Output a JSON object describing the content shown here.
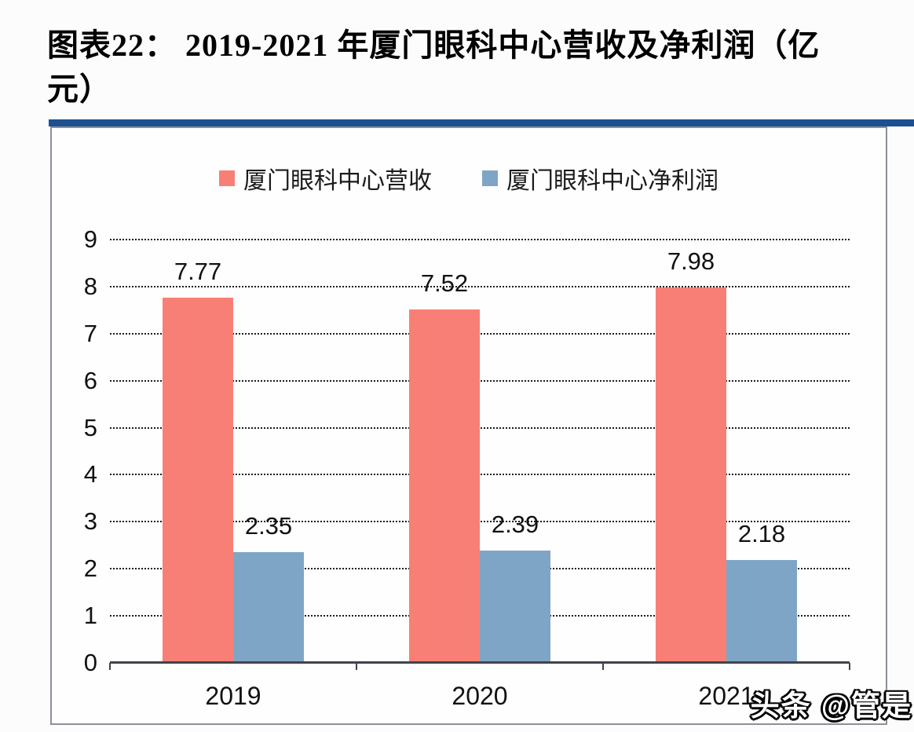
{
  "page": {
    "title_line1": "图表22：  2019-2021 年厦门眼科中心营收及净利润（亿",
    "title_line2": "元）",
    "divider_color": "#1c5090",
    "watermark": "头条 @管是"
  },
  "chart_data": {
    "type": "bar",
    "title": "图表22： 2019-2021 年厦门眼科中心营收及净利润（亿元）",
    "categories": [
      "2019",
      "2020",
      "2021"
    ],
    "series": [
      {
        "name": "厦门眼科中心营收",
        "color": "#f87f75",
        "values": [
          7.77,
          7.52,
          7.98
        ]
      },
      {
        "name": "厦门眼科中心净利润",
        "color": "#7fa5c6",
        "values": [
          2.35,
          2.39,
          2.18
        ]
      }
    ],
    "value_labels": true,
    "ylim": [
      0,
      9
    ],
    "ytick_step": 1,
    "yticks": [
      0,
      1,
      2,
      3,
      4,
      5,
      6,
      7,
      8,
      9
    ],
    "grid": "horizontal-dotted",
    "legend_position": "top-center",
    "unit": "亿元"
  }
}
